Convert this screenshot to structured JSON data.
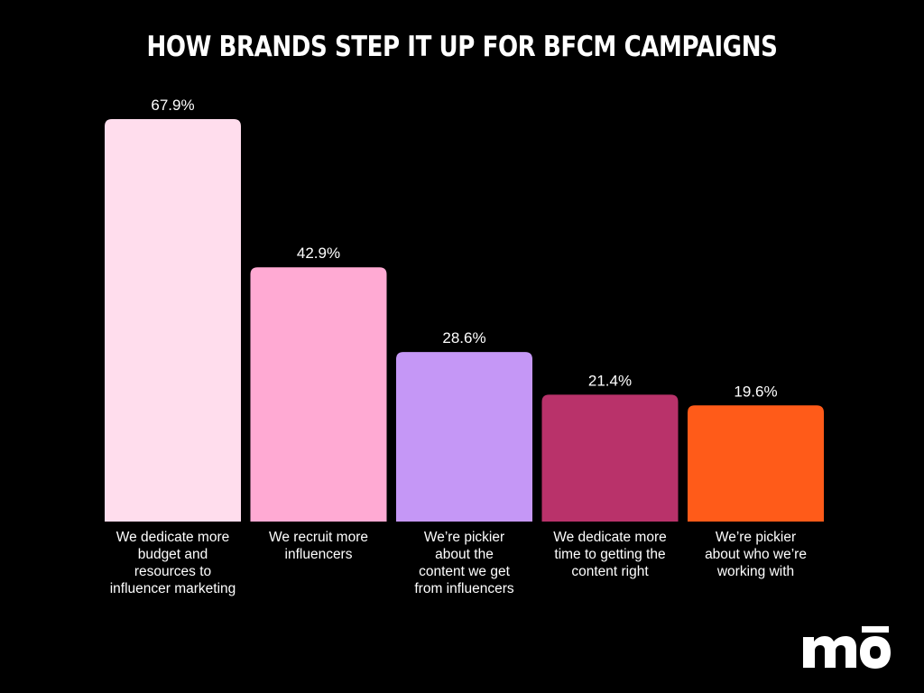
{
  "chart_data": {
    "type": "bar",
    "title": "HOW BRANDS STEP IT UP FOR BFCM CAMPAIGNS",
    "xlabel": "",
    "ylabel": "",
    "categories": [
      "We dedicate more budget and resources to influencer marketing",
      "We recruit more influencers",
      "We’re pickier about the content we get from influencers",
      "We dedicate more time to getting the content right",
      "We’re pickier about who we’re working with"
    ],
    "category_lines": [
      [
        "We dedicate more",
        "budget and",
        "resources to",
        "influencer marketing"
      ],
      [
        "We recruit more",
        "influencers"
      ],
      [
        "We’re pickier",
        "about the",
        "content we get",
        "from influencers"
      ],
      [
        "We dedicate more",
        "time to getting the",
        "content right"
      ],
      [
        "We’re pickier",
        "about who we’re",
        "working with"
      ]
    ],
    "values": [
      67.9,
      42.9,
      28.6,
      21.4,
      19.6
    ],
    "data_labels": [
      "67.9%",
      "42.9%",
      "28.6%",
      "21.4%",
      "19.6%"
    ],
    "colors": [
      "#ffdded",
      "#ffaad3",
      "#c597f6",
      "#b9326a",
      "#ff5b19"
    ],
    "ylim": [
      0,
      67.9
    ],
    "grid": false,
    "legend": "none"
  },
  "logo": {
    "name": "mo-logo",
    "text": "mo",
    "color": "#ffffff"
  }
}
